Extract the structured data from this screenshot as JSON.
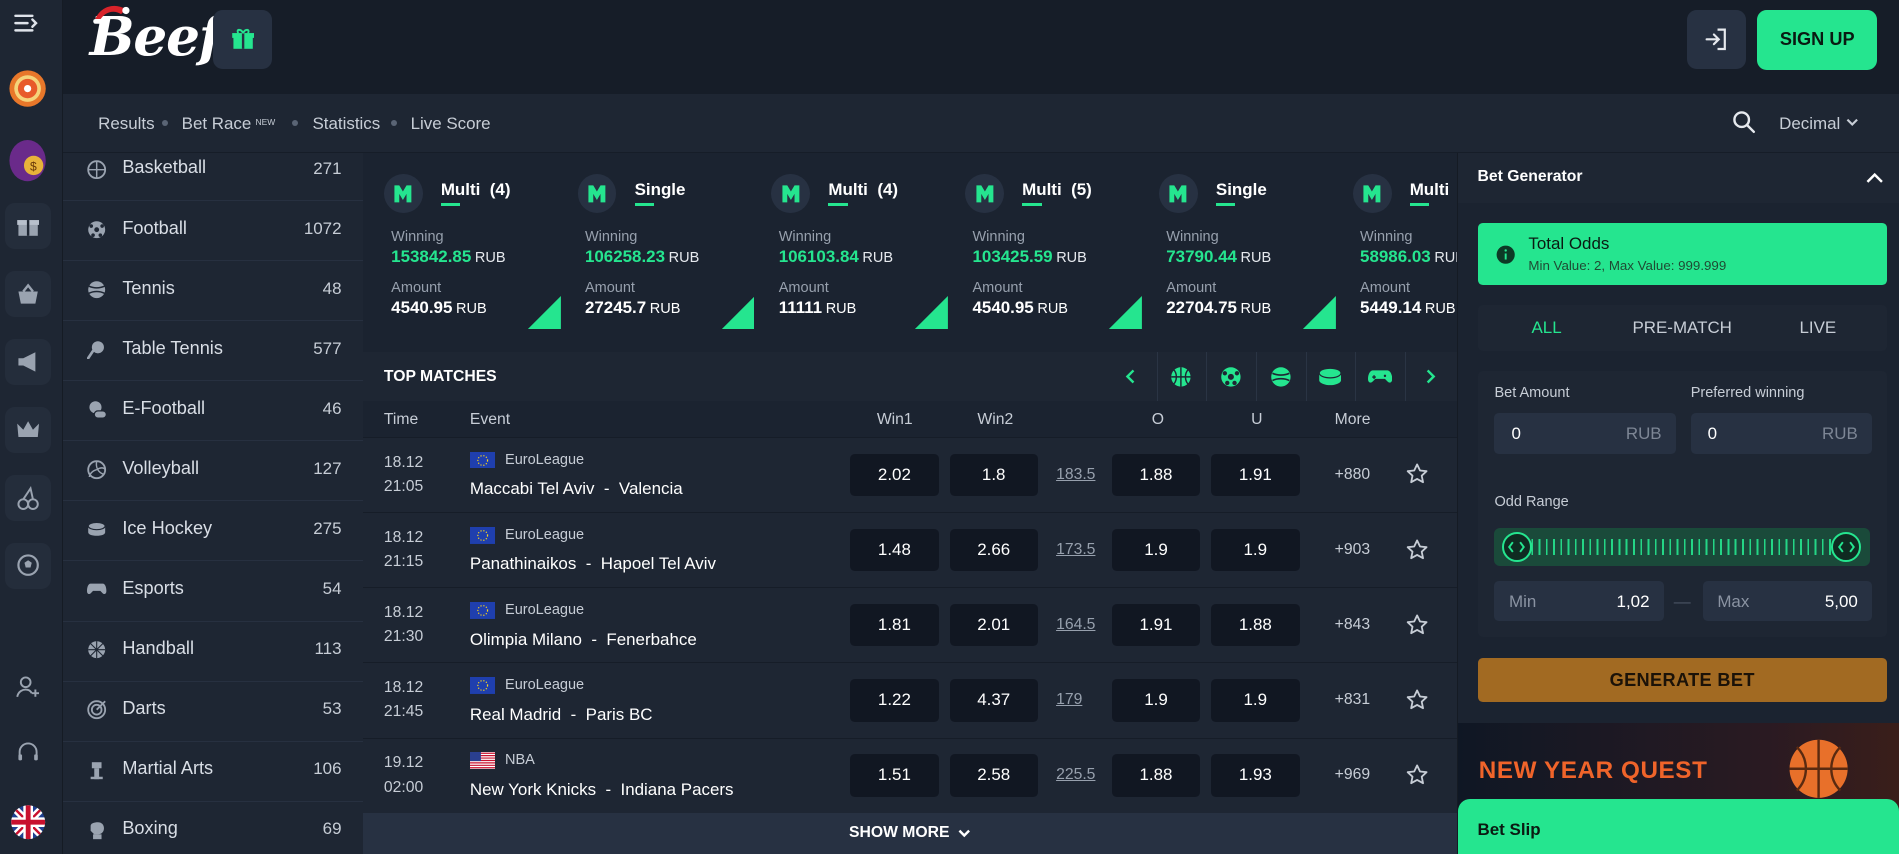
{
  "colors": {
    "accent": "#25e58f",
    "bg": "#1b2330",
    "panel": "#1e2633",
    "header": "#161d28",
    "generate": "#a26a22"
  },
  "header": {
    "logo": "Beef",
    "signup": "SIGN UP"
  },
  "subnav": {
    "results": "Results",
    "bet_race": "Bet Race",
    "bet_race_tag": "NEW",
    "statistics": "Statistics",
    "live_score": "Live Score",
    "odds_format": "Decimal"
  },
  "sports": [
    {
      "name": "Basketball",
      "count": "271",
      "icon": "basketball-icon"
    },
    {
      "name": "Football",
      "count": "1072",
      "icon": "football-icon"
    },
    {
      "name": "Tennis",
      "count": "48",
      "icon": "tennis-icon"
    },
    {
      "name": "Table Tennis",
      "count": "577",
      "icon": "table-tennis-icon"
    },
    {
      "name": "E-Football",
      "count": "46",
      "icon": "e-football-icon"
    },
    {
      "name": "Volleyball",
      "count": "127",
      "icon": "volleyball-icon"
    },
    {
      "name": "Ice Hockey",
      "count": "275",
      "icon": "ice-hockey-icon"
    },
    {
      "name": "Esports",
      "count": "54",
      "icon": "esports-icon"
    },
    {
      "name": "Handball",
      "count": "113",
      "icon": "handball-icon"
    },
    {
      "name": "Darts",
      "count": "53",
      "icon": "darts-icon"
    },
    {
      "name": "Martial Arts",
      "count": "106",
      "icon": "martial-arts-icon"
    },
    {
      "name": "Boxing",
      "count": "69",
      "icon": "boxing-icon"
    }
  ],
  "tickets": [
    {
      "type": "Multi",
      "count": "(4)",
      "winning_label": "Winning",
      "winning": "153842.85",
      "amount_label": "Amount",
      "amount": "4540.95",
      "currency": "RUB"
    },
    {
      "type": "Single",
      "count": "",
      "winning_label": "Winning",
      "winning": "106258.23",
      "amount_label": "Amount",
      "amount": "27245.7",
      "currency": "RUB"
    },
    {
      "type": "Multi",
      "count": "(4)",
      "winning_label": "Winning",
      "winning": "106103.84",
      "amount_label": "Amount",
      "amount": "11111",
      "currency": "RUB"
    },
    {
      "type": "Multi",
      "count": "(5)",
      "winning_label": "Winning",
      "winning": "103425.59",
      "amount_label": "Amount",
      "amount": "4540.95",
      "currency": "RUB"
    },
    {
      "type": "Single",
      "count": "",
      "winning_label": "Winning",
      "winning": "73790.44",
      "amount_label": "Amount",
      "amount": "22704.75",
      "currency": "RUB"
    },
    {
      "type": "Multi",
      "count": "",
      "winning_label": "Winning",
      "winning": "58986.03",
      "amount_label": "Amount",
      "amount": "5449.14",
      "currency": "RUB"
    }
  ],
  "top_matches": {
    "title": "TOP MATCHES",
    "columns": {
      "time": "Time",
      "event": "Event",
      "win1": "Win1",
      "win2": "Win2",
      "o": "O",
      "u": "U",
      "more": "More"
    },
    "rows": [
      {
        "date": "18.12",
        "time": "21:05",
        "league": "EuroLeague",
        "flag": "eu",
        "teams": "Maccabi Tel Aviv  -  Valencia",
        "win1": "2.02",
        "win2": "1.8",
        "total": "183.5",
        "o": "1.88",
        "u": "1.91",
        "more": "+880"
      },
      {
        "date": "18.12",
        "time": "21:15",
        "league": "EuroLeague",
        "flag": "eu",
        "teams": "Panathinaikos  -  Hapoel Tel Aviv",
        "win1": "1.48",
        "win2": "2.66",
        "total": "173.5",
        "o": "1.9",
        "u": "1.9",
        "more": "+903"
      },
      {
        "date": "18.12",
        "time": "21:30",
        "league": "EuroLeague",
        "flag": "eu",
        "teams": "Olimpia Milano  -  Fenerbahce",
        "win1": "1.81",
        "win2": "2.01",
        "total": "164.5",
        "o": "1.91",
        "u": "1.88",
        "more": "+843"
      },
      {
        "date": "18.12",
        "time": "21:45",
        "league": "EuroLeague",
        "flag": "eu",
        "teams": "Real Madrid  -  Paris BC",
        "win1": "1.22",
        "win2": "4.37",
        "total": "179",
        "o": "1.9",
        "u": "1.9",
        "more": "+831"
      },
      {
        "date": "19.12",
        "time": "02:00",
        "league": "NBA",
        "flag": "us",
        "teams": "New York Knicks  -  Indiana Pacers",
        "win1": "1.51",
        "win2": "2.58",
        "total": "225.5",
        "o": "1.88",
        "u": "1.93",
        "more": "+969"
      }
    ],
    "show_more": "SHOW MORE"
  },
  "generator": {
    "title": "Bet Generator",
    "total_odds": "Total Odds",
    "total_odds_sub": "Min Value: 2, Max Value: 999.999",
    "tabs": [
      "ALL",
      "PRE-MATCH",
      "LIVE"
    ],
    "bet_amount_label": "Bet Amount",
    "bet_amount": "0",
    "preferred_label": "Preferred winning",
    "preferred": "0",
    "currency": "RUB",
    "odd_range_label": "Odd Range",
    "min_label": "Min",
    "min_value": "1,02",
    "max_label": "Max",
    "max_value": "5,00",
    "generate": "GENERATE BET"
  },
  "promo": {
    "text": "NEW YEAR QUEST"
  },
  "bet_slip": {
    "label": "Bet Slip"
  }
}
